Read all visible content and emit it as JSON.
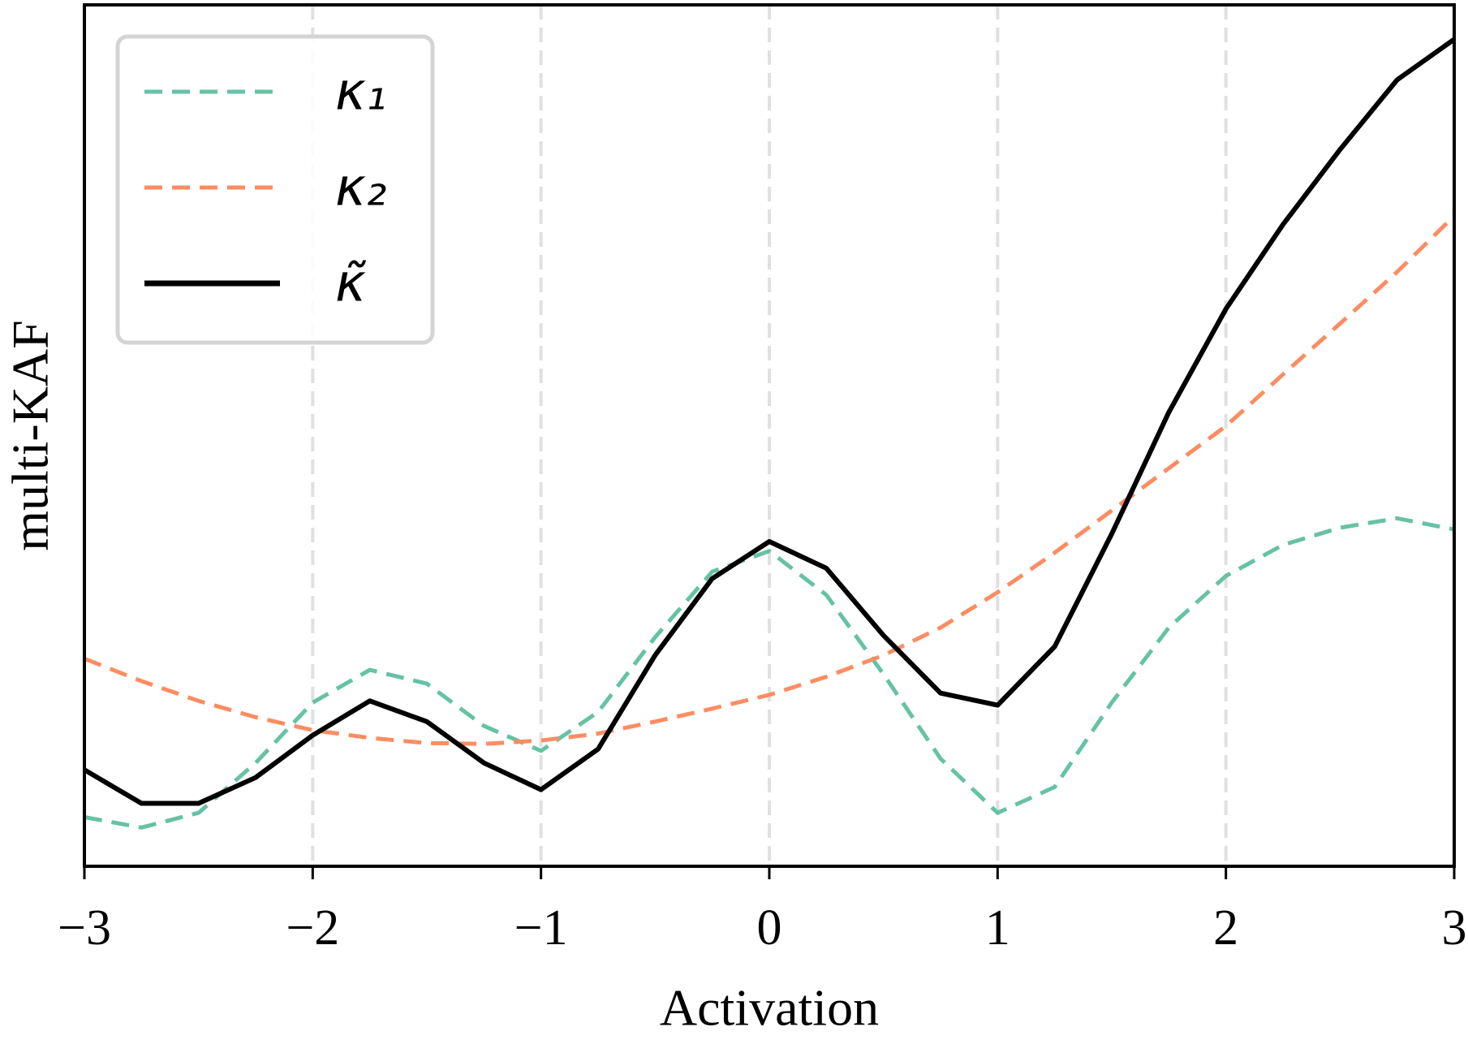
{
  "chart_data": {
    "type": "line",
    "xlabel": "Activation",
    "ylabel": "multi-KAF",
    "x": [
      -3,
      -2.75,
      -2.5,
      -2.25,
      -2,
      -1.75,
      -1.5,
      -1.25,
      -1,
      -0.75,
      -0.5,
      -0.25,
      0,
      0.25,
      0.5,
      0.75,
      1,
      1.25,
      1.5,
      1.75,
      2,
      2.25,
      2.5,
      2.75,
      3
    ],
    "series": [
      {
        "name": "κ₁",
        "color": "#66c2a5",
        "dashed": true,
        "values": [
          0.57,
          0.45,
          0.62,
          1.2,
          1.9,
          2.28,
          2.12,
          1.63,
          1.34,
          1.79,
          2.66,
          3.42,
          3.66,
          3.15,
          2.23,
          1.25,
          0.62,
          0.92,
          1.9,
          2.77,
          3.37,
          3.73,
          3.93,
          4.04,
          3.91
        ]
      },
      {
        "name": "κ₂",
        "color": "#fc8d62",
        "dashed": true,
        "values": [
          2.41,
          2.15,
          1.92,
          1.73,
          1.58,
          1.49,
          1.43,
          1.42,
          1.46,
          1.54,
          1.68,
          1.83,
          1.99,
          2.2,
          2.45,
          2.77,
          3.18,
          3.64,
          4.13,
          4.62,
          5.11,
          5.71,
          6.3,
          6.9,
          7.55
        ]
      },
      {
        "name": "κ̃",
        "color": "#000000",
        "dashed": false,
        "values": [
          1.12,
          0.73,
          0.73,
          1.03,
          1.52,
          1.92,
          1.68,
          1.2,
          0.89,
          1.36,
          2.45,
          3.34,
          3.77,
          3.46,
          2.68,
          2.01,
          1.87,
          2.55,
          3.86,
          5.27,
          6.47,
          7.45,
          8.32,
          9.13,
          9.6
        ]
      }
    ],
    "xlim": [
      -3,
      3
    ],
    "ylim": [
      0,
      10
    ],
    "xticks": [
      {
        "value": -3,
        "label": "−3"
      },
      {
        "value": -2,
        "label": "−2"
      },
      {
        "value": -1,
        "label": "−1"
      },
      0,
      1,
      2,
      3
    ],
    "grid": true,
    "legend": "upper left"
  }
}
